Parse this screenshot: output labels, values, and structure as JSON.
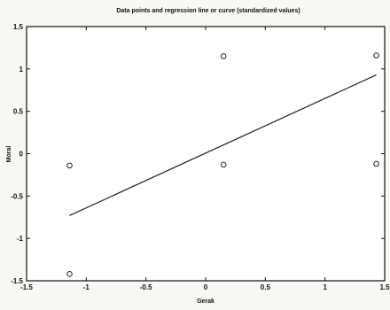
{
  "chart_data": {
    "type": "scatter",
    "title": "Data points and regression line or curve (standardized values)",
    "xlabel": "Gerak",
    "ylabel": "Moral",
    "xlim": [
      -1.5,
      1.5
    ],
    "ylim": [
      -1.5,
      1.5
    ],
    "xticks": [
      -1.5,
      -1,
      -0.5,
      0,
      0.5,
      1,
      1.5
    ],
    "yticks": [
      -1.5,
      -1,
      -0.5,
      0,
      0.5,
      1,
      1.5
    ],
    "xtick_labels": [
      "-1.5",
      "-1",
      "-0.5",
      "0",
      "0.5",
      "1",
      "1.5"
    ],
    "ytick_labels": [
      "-1.5",
      "-1",
      "-0.5",
      "0",
      "0.5",
      "1",
      "1.5"
    ],
    "grid": false,
    "legend": "none",
    "marker": "circle-open",
    "points": [
      {
        "x": -1.14,
        "y": -0.14
      },
      {
        "x": -1.14,
        "y": -1.42
      },
      {
        "x": 0.15,
        "y": 1.15
      },
      {
        "x": 0.15,
        "y": -0.13
      },
      {
        "x": 1.43,
        "y": 1.16
      },
      {
        "x": 1.43,
        "y": -0.12
      }
    ],
    "regression_line": {
      "x": [
        -1.14,
        1.43
      ],
      "y": [
        -0.73,
        0.93
      ]
    },
    "colors": {
      "line": "#222222",
      "marker": "#222222",
      "axis": "#111111",
      "background": "#ffffff"
    }
  }
}
